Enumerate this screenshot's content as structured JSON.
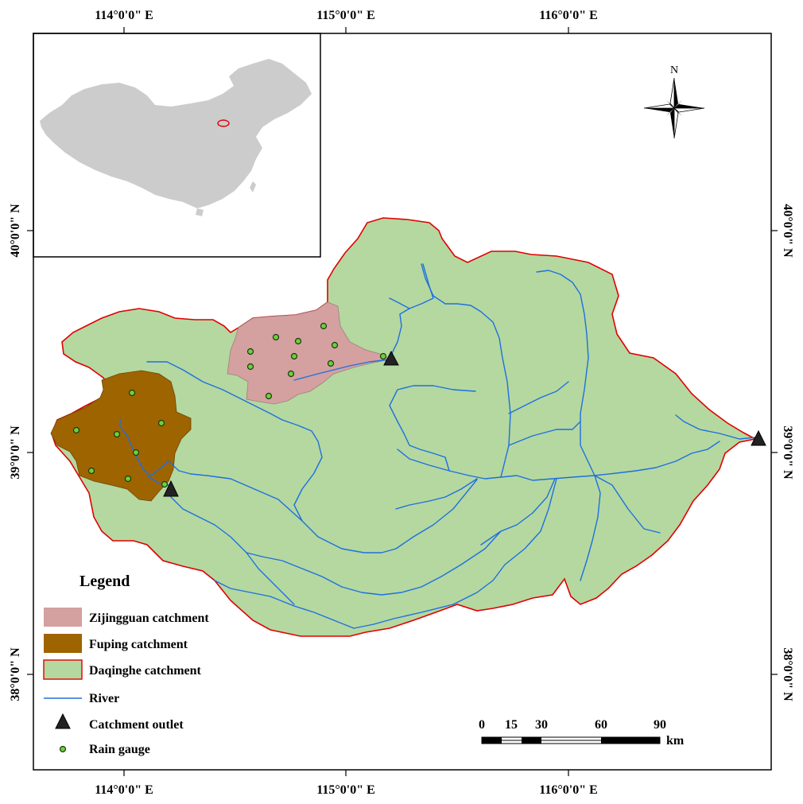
{
  "colors": {
    "zijingguan_fill": "#d4a0a0",
    "fuping_fill": "#9e6400",
    "daqinghe_fill": "#b4d8a0",
    "daqinghe_border": "#e00000",
    "river": "#1f6fe0",
    "outlet": "#000000",
    "gauge_fill": "#6ecf3c",
    "inset_country": "#cccccc"
  },
  "axes": {
    "top_labels": [
      "114°0'0\" E",
      "115°0'0\" E",
      "116°0'0\" E"
    ],
    "bottom_labels": [
      "114°0'0\" E",
      "115°0'0\" E",
      "116°0'0\" E"
    ],
    "left_labels": [
      "40°0'0\" N",
      "39°0'0\" N",
      "38°0'0\" N"
    ],
    "right_labels": [
      "40°0'0\" N",
      "39°0'0\" N",
      "38°0'0\" N"
    ]
  },
  "north_arrow": {
    "label": "N"
  },
  "legend": {
    "title": "Legend",
    "items": [
      {
        "label": "Zijingguan catchment"
      },
      {
        "label": "Fuping catchment"
      },
      {
        "label": "Daqinghe catchment"
      },
      {
        "label": "River"
      },
      {
        "label": "Catchment outlet"
      },
      {
        "label": "Rain gauge"
      }
    ]
  },
  "scale_bar": {
    "ticks": [
      "0",
      "15",
      "30",
      "60",
      "90"
    ],
    "unit": "km"
  }
}
